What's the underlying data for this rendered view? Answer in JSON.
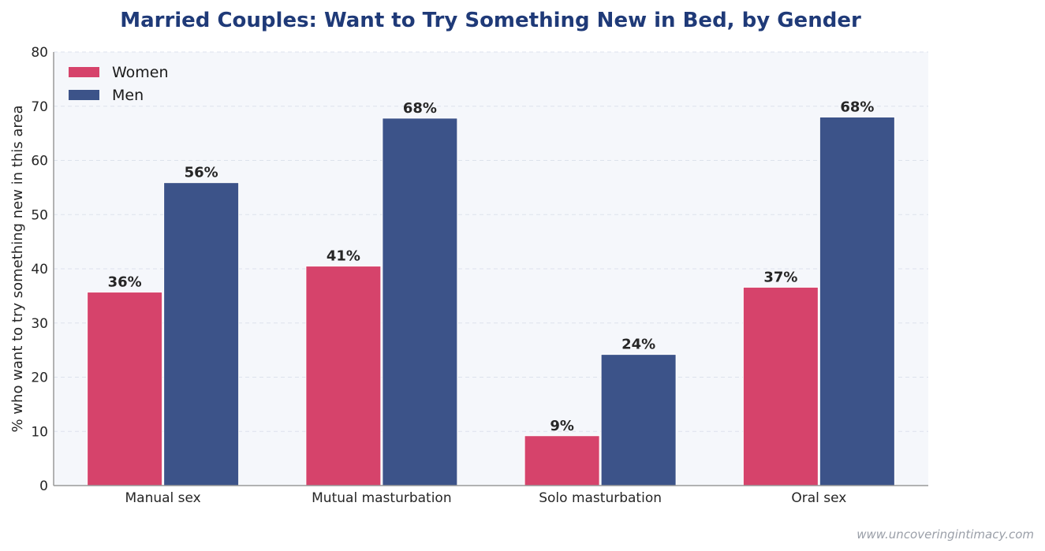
{
  "chart_data": {
    "type": "bar",
    "title": "Married Couples: Want to Try Something New in Bed, by Gender",
    "xlabel": "",
    "ylabel": "% who want to try something new in this area",
    "categories": [
      "Manual sex",
      "Mutual masturbation",
      "Solo masturbation",
      "Oral sex"
    ],
    "series": [
      {
        "name": "Women",
        "color": "#d6436b",
        "values": [
          35.7,
          40.5,
          9.2,
          36.6
        ],
        "labels": [
          "36%",
          "41%",
          "9%",
          "37%"
        ]
      },
      {
        "name": "Men",
        "color": "#3c5389",
        "values": [
          55.9,
          67.8,
          24.2,
          68.0
        ],
        "labels": [
          "56%",
          "68%",
          "24%",
          "68%"
        ]
      }
    ],
    "ylim": [
      0,
      80
    ],
    "yticks": [
      "0",
      "10",
      "20",
      "30",
      "40",
      "50",
      "60",
      "70",
      "80"
    ],
    "grid": "horizontal dashed",
    "legend": "top-left",
    "plot_background": "#f5f7fb"
  },
  "watermark": "www.uncoveringintimacy.com"
}
